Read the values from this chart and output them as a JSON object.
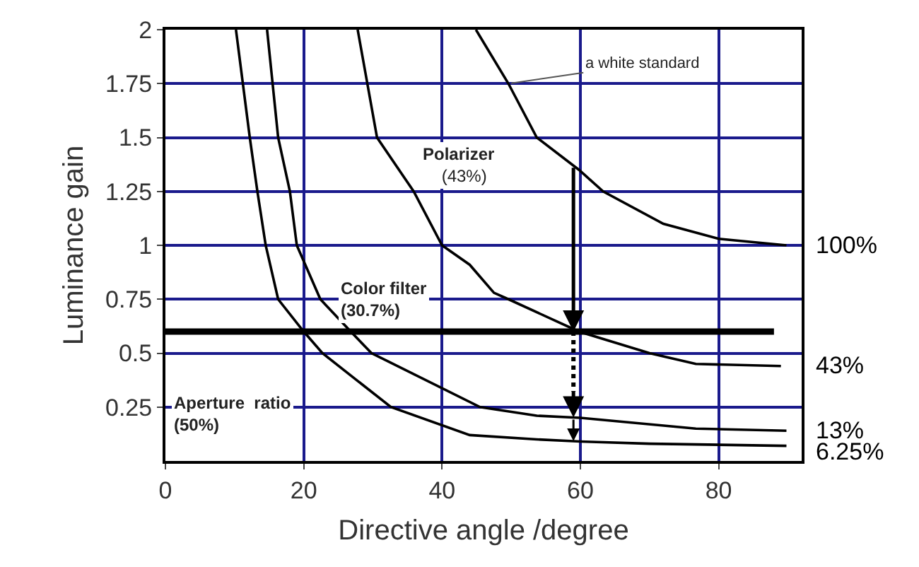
{
  "chart_data": {
    "type": "line",
    "xlabel": "Directive angle /degree",
    "ylabel": "Luminance gain",
    "xlim": [
      0,
      92
    ],
    "xticks": [
      0,
      20,
      40,
      60,
      80
    ],
    "ylim": [
      0,
      2
    ],
    "yticks": [
      0.25,
      0.5,
      0.75,
      1,
      1.25,
      1.5,
      1.75,
      2
    ],
    "grid": true,
    "legend": false,
    "marker": "none",
    "line_style": "solid",
    "series": [
      {
        "name": "100%",
        "color": "#000000",
        "x": [
          44.9,
          49.6,
          53.7,
          59.8,
          63.3,
          72,
          80,
          89.8
        ],
        "values": [
          2,
          1.75,
          1.5,
          1.35,
          1.25,
          1.1,
          1.03,
          1.0
        ]
      },
      {
        "name": "43%",
        "color": "#000000",
        "x": [
          27.8,
          30.6,
          35.9,
          40,
          44,
          47.5,
          49.6,
          59.8,
          70,
          76.7,
          89
        ],
        "values": [
          2,
          1.5,
          1.25,
          1.0,
          0.91,
          0.78,
          0.75,
          0.6,
          0.5,
          0.45,
          0.44
        ]
      },
      {
        "name": "13%",
        "color": "#000000",
        "x": [
          14.7,
          16.3,
          18,
          19,
          22.4,
          26.8,
          29.8,
          45.5,
          53.7,
          60,
          76.7,
          89.8
        ],
        "values": [
          2,
          1.5,
          1.25,
          1.0,
          0.75,
          0.6,
          0.5,
          0.25,
          0.21,
          0.2,
          0.15,
          0.14
        ]
      },
      {
        "name": "6.25%",
        "color": "#000000",
        "x": [
          10.2,
          12.2,
          13.3,
          14.5,
          16.3,
          20,
          22.7,
          32.6,
          44,
          53.7,
          60,
          70,
          89.8
        ],
        "values": [
          2,
          1.5,
          1.25,
          1.0,
          0.75,
          0.6,
          0.5,
          0.25,
          0.12,
          0.1,
          0.09,
          0.08,
          0.07
        ]
      },
      {
        "color": "#000000",
        "x": [
          0,
          88
        ],
        "values": [
          0.6,
          0.6
        ]
      }
    ],
    "annotations": [
      {
        "text": "a white standard",
        "x": 49.6,
        "y": 1.75
      },
      "Polarizer\n(43%)",
      "Color filter\n(30.7%)",
      "Aperture  ratio\n(50%)"
    ]
  }
}
